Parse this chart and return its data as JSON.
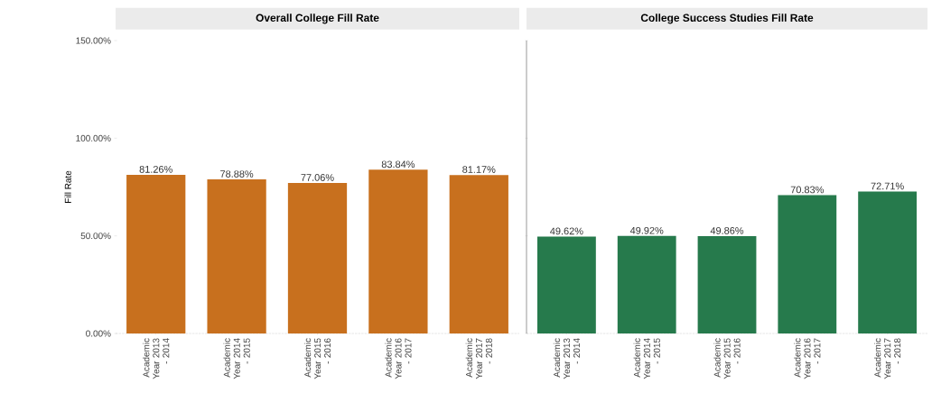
{
  "chart_data": [
    {
      "type": "bar",
      "title": "Overall College Fill Rate",
      "ylabel": "Fill Rate",
      "categories": [
        "Academic Year 2013 - 2014",
        "Academic Year 2014 - 2015",
        "Academic Year 2015 - 2016",
        "Academic Year 2016 - 2017",
        "Academic Year 2017 - 2018"
      ],
      "values": [
        81.26,
        78.88,
        77.06,
        83.84,
        81.17
      ],
      "value_labels": [
        "81.26%",
        "78.88%",
        "77.06%",
        "83.84%",
        "81.17%"
      ],
      "color": "#c8701e",
      "ylim": [
        0,
        150
      ],
      "yticks": [
        {
          "value": 0,
          "label": "0.00%"
        },
        {
          "value": 50,
          "label": "50.00%"
        },
        {
          "value": 100,
          "label": "100.00%"
        },
        {
          "value": 150,
          "label": "150.00%"
        }
      ]
    },
    {
      "type": "bar",
      "title": "College Success Studies Fill Rate",
      "categories": [
        "Academic Year 2013 - 2014",
        "Academic Year 2014 - 2015",
        "Academic Year 2015 - 2016",
        "Academic Year 2016 - 2017",
        "Academic Year 2017 - 2018"
      ],
      "values": [
        49.62,
        49.92,
        49.86,
        70.83,
        72.71
      ],
      "value_labels": [
        "49.62%",
        "49.92%",
        "49.86%",
        "70.83%",
        "72.71%"
      ],
      "color": "#267a4c",
      "ylim": [
        0,
        150
      ],
      "yticks": [
        0,
        50,
        100,
        150
      ],
      "tick_labels": "x"
    }
  ]
}
